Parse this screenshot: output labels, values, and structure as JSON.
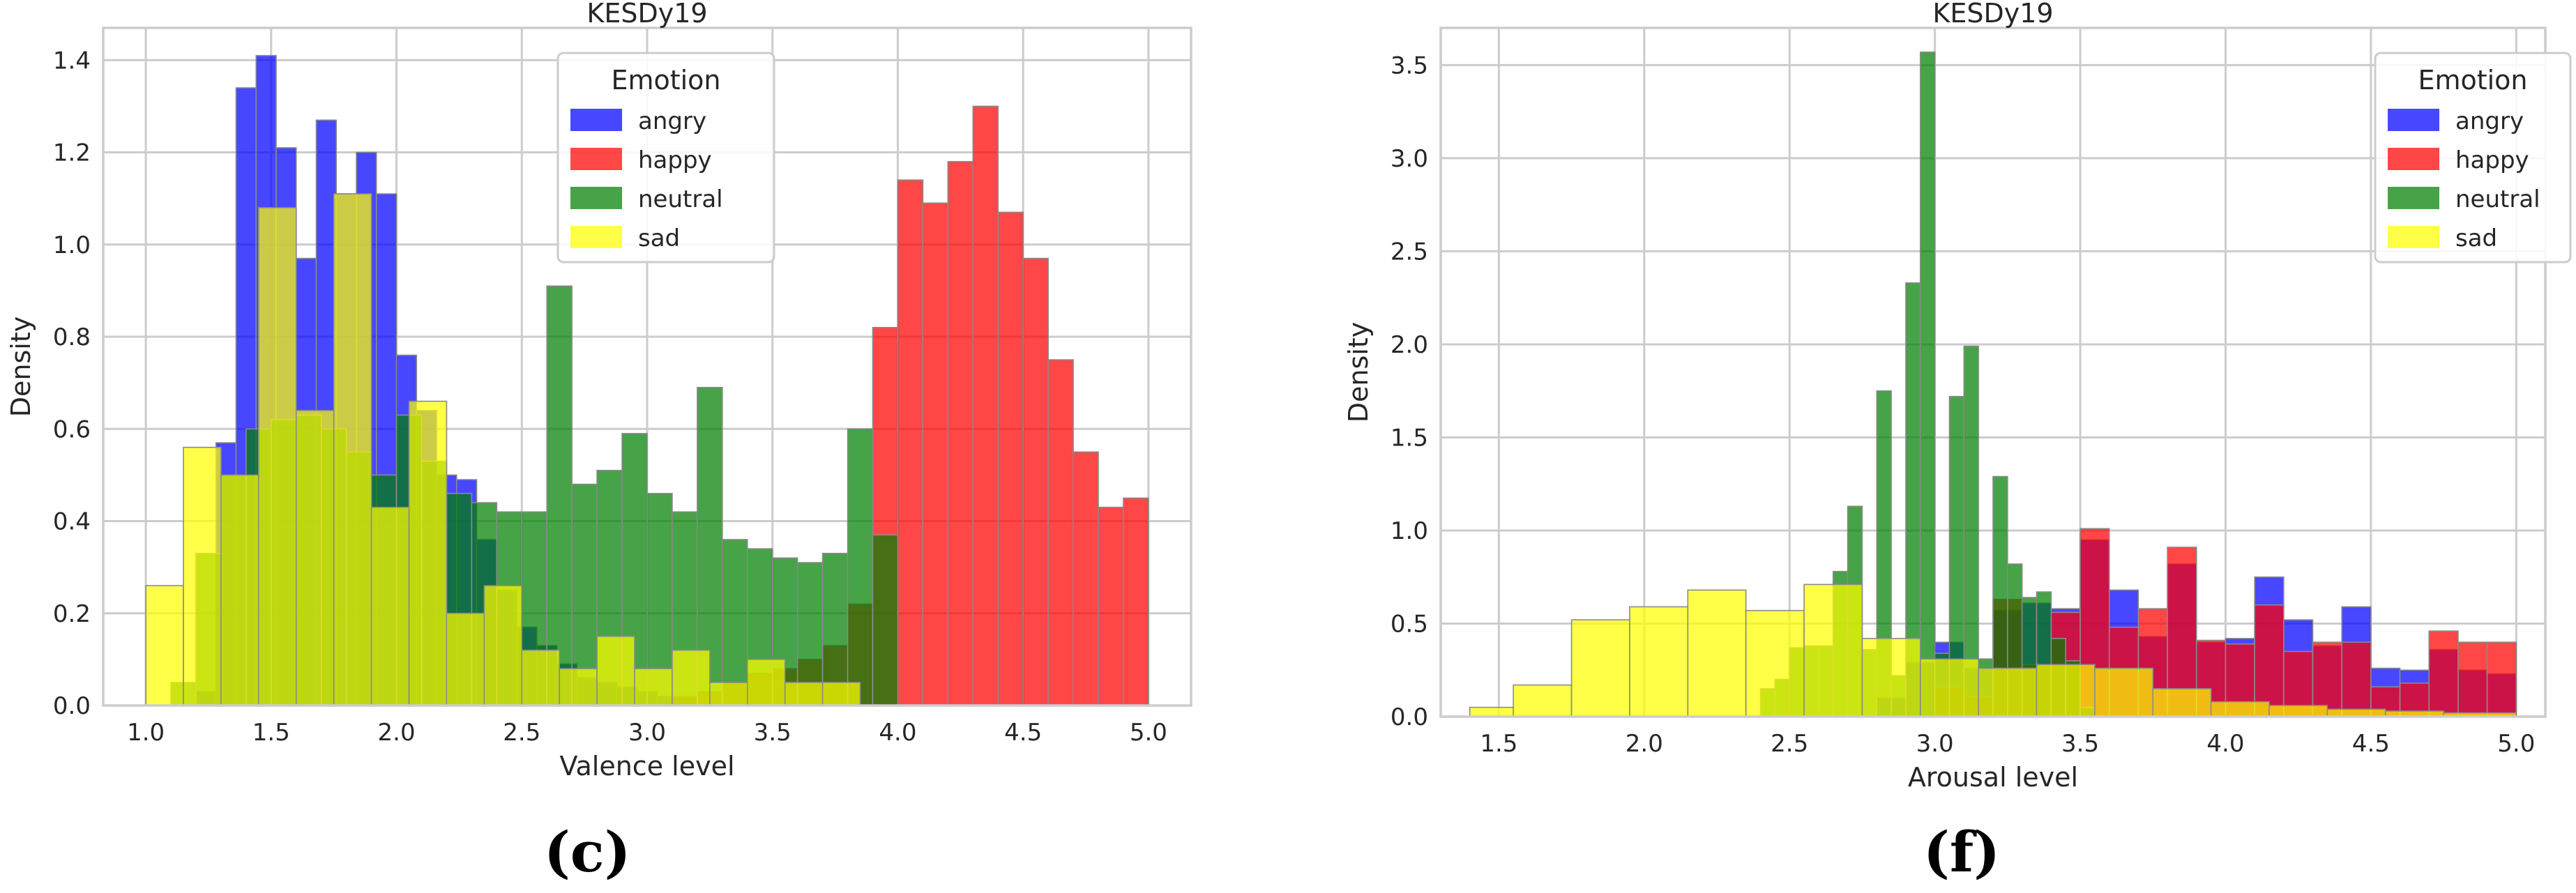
{
  "figure": {
    "panel_labels": [
      "(c)",
      "(f)"
    ]
  },
  "colors": {
    "angry": "#0000ff",
    "happy": "#ff0000",
    "neutral": "#008000",
    "sad": "#ffff00",
    "grid": "#cccccc",
    "frame": "#cccccc",
    "text": "#262626"
  },
  "chart_data": [
    {
      "type": "histogram",
      "title": "KESDy19",
      "xlabel": "Valence level",
      "ylabel": "Density",
      "xlim": [
        0.83,
        5.17
      ],
      "ylim": [
        0,
        1.47
      ],
      "xticks": [
        "1.0",
        "1.5",
        "2.0",
        "2.5",
        "3.0",
        "3.5",
        "4.0",
        "4.5",
        "5.0"
      ],
      "yticks": [
        "0.0",
        "0.2",
        "0.4",
        "0.6",
        "0.8",
        "1.0",
        "1.2",
        "1.4"
      ],
      "grid": true,
      "legend": {
        "title": "Emotion",
        "placement": "upper-center",
        "entries": [
          "angry",
          "happy",
          "neutral",
          "sad"
        ]
      },
      "series": [
        {
          "name": "angry",
          "bins": [
            [
              1.2,
              1.28,
              0.03
            ],
            [
              1.28,
              1.36,
              0.57
            ],
            [
              1.36,
              1.44,
              1.34
            ],
            [
              1.44,
              1.52,
              1.41
            ],
            [
              1.52,
              1.6,
              1.21
            ],
            [
              1.6,
              1.68,
              0.97
            ],
            [
              1.68,
              1.76,
              1.27
            ],
            [
              1.76,
              1.84,
              1.11
            ],
            [
              1.84,
              1.92,
              1.2
            ],
            [
              1.92,
              2.0,
              1.11
            ],
            [
              2.0,
              2.08,
              0.76
            ],
            [
              2.08,
              2.16,
              0.64
            ],
            [
              2.16,
              2.24,
              0.5
            ],
            [
              2.24,
              2.32,
              0.49
            ],
            [
              2.32,
              2.4,
              0.36
            ],
            [
              2.4,
              2.48,
              0.25
            ],
            [
              2.48,
              2.56,
              0.17
            ],
            [
              2.56,
              2.64,
              0.13
            ],
            [
              2.64,
              2.72,
              0.09
            ],
            [
              2.72,
              2.8,
              0.06
            ],
            [
              2.8,
              2.88,
              0.05
            ],
            [
              2.88,
              2.96,
              0.04
            ],
            [
              2.96,
              3.04,
              0.03
            ],
            [
              3.04,
              3.12,
              0.02
            ],
            [
              3.12,
              3.2,
              0.02
            ]
          ]
        },
        {
          "name": "happy",
          "bins": [
            [
              3.0,
              3.1,
              0.0
            ],
            [
              3.1,
              3.2,
              0.02
            ],
            [
              3.2,
              3.3,
              0.03
            ],
            [
              3.3,
              3.4,
              0.05
            ],
            [
              3.4,
              3.5,
              0.07
            ],
            [
              3.5,
              3.6,
              0.08
            ],
            [
              3.6,
              3.7,
              0.1
            ],
            [
              3.7,
              3.8,
              0.13
            ],
            [
              3.8,
              3.9,
              0.22
            ],
            [
              3.9,
              4.0,
              0.82
            ],
            [
              4.0,
              4.1,
              1.14
            ],
            [
              4.1,
              4.2,
              1.09
            ],
            [
              4.2,
              4.3,
              1.18
            ],
            [
              4.3,
              4.4,
              1.3
            ],
            [
              4.4,
              4.5,
              1.07
            ],
            [
              4.5,
              4.6,
              0.97
            ],
            [
              4.6,
              4.7,
              0.75
            ],
            [
              4.7,
              4.8,
              0.55
            ],
            [
              4.8,
              4.9,
              0.43
            ],
            [
              4.9,
              5.0,
              0.45
            ]
          ]
        },
        {
          "name": "neutral",
          "bins": [
            [
              1.1,
              1.2,
              0.05
            ],
            [
              1.2,
              1.3,
              0.33
            ],
            [
              1.3,
              1.4,
              0.5
            ],
            [
              1.4,
              1.5,
              0.6
            ],
            [
              1.5,
              1.6,
              0.62
            ],
            [
              1.6,
              1.7,
              0.63
            ],
            [
              1.7,
              1.8,
              0.6
            ],
            [
              1.8,
              1.9,
              0.55
            ],
            [
              1.9,
              2.0,
              0.5
            ],
            [
              2.0,
              2.1,
              0.63
            ],
            [
              2.1,
              2.2,
              0.53
            ],
            [
              2.2,
              2.3,
              0.46
            ],
            [
              2.3,
              2.4,
              0.44
            ],
            [
              2.4,
              2.5,
              0.42
            ],
            [
              2.5,
              2.6,
              0.42
            ],
            [
              2.6,
              2.7,
              0.91
            ],
            [
              2.7,
              2.8,
              0.48
            ],
            [
              2.8,
              2.9,
              0.51
            ],
            [
              2.9,
              3.0,
              0.59
            ],
            [
              3.0,
              3.1,
              0.46
            ],
            [
              3.1,
              3.2,
              0.42
            ],
            [
              3.2,
              3.3,
              0.69
            ],
            [
              3.3,
              3.4,
              0.36
            ],
            [
              3.4,
              3.5,
              0.34
            ],
            [
              3.5,
              3.6,
              0.32
            ],
            [
              3.6,
              3.7,
              0.31
            ],
            [
              3.7,
              3.8,
              0.33
            ],
            [
              3.8,
              3.9,
              0.6
            ],
            [
              3.9,
              4.0,
              0.37
            ]
          ]
        },
        {
          "name": "sad",
          "bins": [
            [
              1.0,
              1.15,
              0.26
            ],
            [
              1.15,
              1.3,
              0.56
            ],
            [
              1.3,
              1.45,
              0.5
            ],
            [
              1.45,
              1.6,
              1.08
            ],
            [
              1.6,
              1.75,
              0.64
            ],
            [
              1.75,
              1.9,
              1.11
            ],
            [
              1.9,
              2.05,
              0.43
            ],
            [
              2.05,
              2.2,
              0.66
            ],
            [
              2.2,
              2.35,
              0.2
            ],
            [
              2.35,
              2.5,
              0.26
            ],
            [
              2.5,
              2.65,
              0.12
            ],
            [
              2.65,
              2.8,
              0.08
            ],
            [
              2.8,
              2.95,
              0.15
            ],
            [
              2.95,
              3.1,
              0.08
            ],
            [
              3.1,
              3.25,
              0.12
            ],
            [
              3.25,
              3.4,
              0.05
            ],
            [
              3.4,
              3.55,
              0.1
            ],
            [
              3.55,
              3.7,
              0.05
            ],
            [
              3.7,
              3.85,
              0.05
            ]
          ]
        }
      ]
    },
    {
      "type": "histogram",
      "title": "KESDy19",
      "xlabel": "Arousal level",
      "ylabel": "Density",
      "xlim": [
        1.3,
        5.1
      ],
      "ylim": [
        0,
        3.7
      ],
      "xticks": [
        "1.5",
        "2.0",
        "2.5",
        "3.0",
        "3.5",
        "4.0",
        "4.5",
        "5.0"
      ],
      "yticks": [
        "0.0",
        "0.5",
        "1.0",
        "1.5",
        "2.0",
        "2.5",
        "3.0",
        "3.5"
      ],
      "grid": true,
      "legend": {
        "title": "Emotion",
        "placement": "top-right",
        "entries": [
          "angry",
          "happy",
          "neutral",
          "sad"
        ]
      },
      "series": [
        {
          "name": "angry",
          "bins": [
            [
              2.8,
              2.9,
              0.1
            ],
            [
              2.9,
              3.0,
              0.29
            ],
            [
              3.0,
              3.1,
              0.4
            ],
            [
              3.1,
              3.2,
              0.26
            ],
            [
              3.2,
              3.3,
              0.57
            ],
            [
              3.3,
              3.4,
              0.61
            ],
            [
              3.4,
              3.5,
              0.58
            ],
            [
              3.5,
              3.6,
              0.95
            ],
            [
              3.6,
              3.7,
              0.68
            ],
            [
              3.7,
              3.8,
              0.43
            ],
            [
              3.8,
              3.9,
              0.82
            ],
            [
              3.9,
              4.0,
              0.4
            ],
            [
              4.0,
              4.1,
              0.42
            ],
            [
              4.1,
              4.2,
              0.75
            ],
            [
              4.2,
              4.3,
              0.52
            ],
            [
              4.3,
              4.4,
              0.38
            ],
            [
              4.4,
              4.5,
              0.59
            ],
            [
              4.5,
              4.6,
              0.26
            ],
            [
              4.6,
              4.7,
              0.25
            ],
            [
              4.7,
              4.8,
              0.36
            ],
            [
              4.8,
              4.9,
              0.25
            ],
            [
              4.9,
              5.0,
              0.23
            ]
          ]
        },
        {
          "name": "happy",
          "bins": [
            [
              3.0,
              3.1,
              0.16
            ],
            [
              3.1,
              3.2,
              0.11
            ],
            [
              3.2,
              3.3,
              0.63
            ],
            [
              3.3,
              3.4,
              0.28
            ],
            [
              3.4,
              3.5,
              0.56
            ],
            [
              3.5,
              3.6,
              1.01
            ],
            [
              3.6,
              3.7,
              0.48
            ],
            [
              3.7,
              3.8,
              0.58
            ],
            [
              3.8,
              3.9,
              0.91
            ],
            [
              3.9,
              4.0,
              0.41
            ],
            [
              4.0,
              4.1,
              0.39
            ],
            [
              4.1,
              4.2,
              0.6
            ],
            [
              4.2,
              4.3,
              0.35
            ],
            [
              4.3,
              4.4,
              0.4
            ],
            [
              4.4,
              4.5,
              0.4
            ],
            [
              4.5,
              4.6,
              0.16
            ],
            [
              4.6,
              4.7,
              0.18
            ],
            [
              4.7,
              4.8,
              0.46
            ],
            [
              4.8,
              4.9,
              0.4
            ],
            [
              4.9,
              5.0,
              0.4
            ]
          ]
        },
        {
          "name": "neutral",
          "bins": [
            [
              2.4,
              2.45,
              0.15
            ],
            [
              2.45,
              2.5,
              0.2
            ],
            [
              2.5,
              2.55,
              0.37
            ],
            [
              2.55,
              2.6,
              0.38
            ],
            [
              2.6,
              2.65,
              0.38
            ],
            [
              2.65,
              2.7,
              0.78
            ],
            [
              2.7,
              2.75,
              1.13
            ],
            [
              2.75,
              2.8,
              0.36
            ],
            [
              2.8,
              2.85,
              1.75
            ],
            [
              2.85,
              2.9,
              0.22
            ],
            [
              2.9,
              2.95,
              2.33
            ],
            [
              2.95,
              3.0,
              3.57
            ],
            [
              3.0,
              3.05,
              0.34
            ],
            [
              3.05,
              3.1,
              1.72
            ],
            [
              3.1,
              3.15,
              1.99
            ],
            [
              3.15,
              3.2,
              0.31
            ],
            [
              3.2,
              3.25,
              1.29
            ],
            [
              3.25,
              3.3,
              0.82
            ],
            [
              3.3,
              3.35,
              0.64
            ],
            [
              3.35,
              3.4,
              0.67
            ],
            [
              3.4,
              3.45,
              0.42
            ],
            [
              3.45,
              3.5,
              0.3
            ],
            [
              3.5,
              3.55,
              0.05
            ]
          ]
        },
        {
          "name": "sad",
          "bins": [
            [
              1.4,
              1.55,
              0.05
            ],
            [
              1.55,
              1.75,
              0.17
            ],
            [
              1.75,
              1.95,
              0.52
            ],
            [
              1.95,
              2.15,
              0.59
            ],
            [
              2.15,
              2.35,
              0.68
            ],
            [
              2.35,
              2.55,
              0.57
            ],
            [
              2.55,
              2.75,
              0.71
            ],
            [
              2.75,
              2.95,
              0.42
            ],
            [
              2.95,
              3.15,
              0.31
            ],
            [
              3.15,
              3.35,
              0.26
            ],
            [
              3.35,
              3.55,
              0.28
            ],
            [
              3.55,
              3.75,
              0.26
            ],
            [
              3.75,
              3.95,
              0.15
            ],
            [
              3.95,
              4.15,
              0.08
            ],
            [
              4.15,
              4.35,
              0.06
            ],
            [
              4.35,
              4.55,
              0.04
            ],
            [
              4.55,
              4.75,
              0.03
            ],
            [
              4.75,
              5.0,
              0.02
            ]
          ]
        }
      ]
    }
  ]
}
